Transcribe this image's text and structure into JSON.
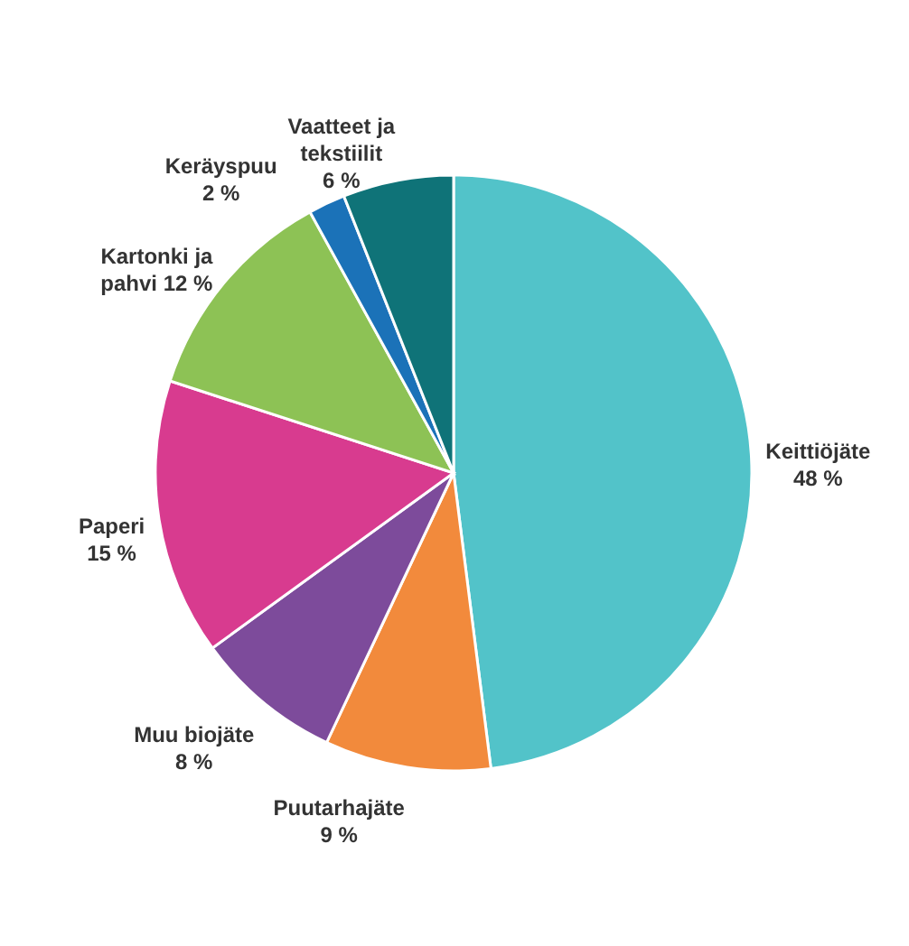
{
  "chart_data": {
    "type": "pie",
    "categories": [
      "Keittiöjäte",
      "Puutarhajäte",
      "Muu biojäte",
      "Paperi",
      "Kartonki ja pahvi",
      "Keräyspuu",
      "Vaatteet ja tekstiilit"
    ],
    "values": [
      48,
      9,
      8,
      15,
      12,
      2,
      6
    ],
    "value_labels": [
      "48 %",
      "9 %",
      "8 %",
      "15 %",
      "12 %",
      "2 %",
      "6 %"
    ],
    "colors": [
      "#52c3c9",
      "#f28a3c",
      "#7d4b9b",
      "#d83b8f",
      "#8dc255",
      "#1b72b8",
      "#0f7378"
    ]
  }
}
